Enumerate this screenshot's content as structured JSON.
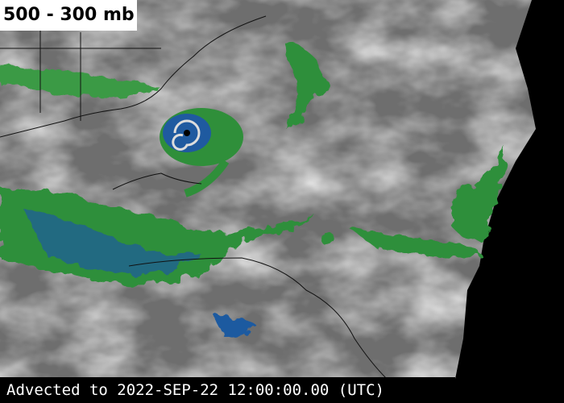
{
  "title": "500 - 300 mb",
  "footer": "Advected to 2022-SEP-22 12:00:00.00 (UTC)"
}
